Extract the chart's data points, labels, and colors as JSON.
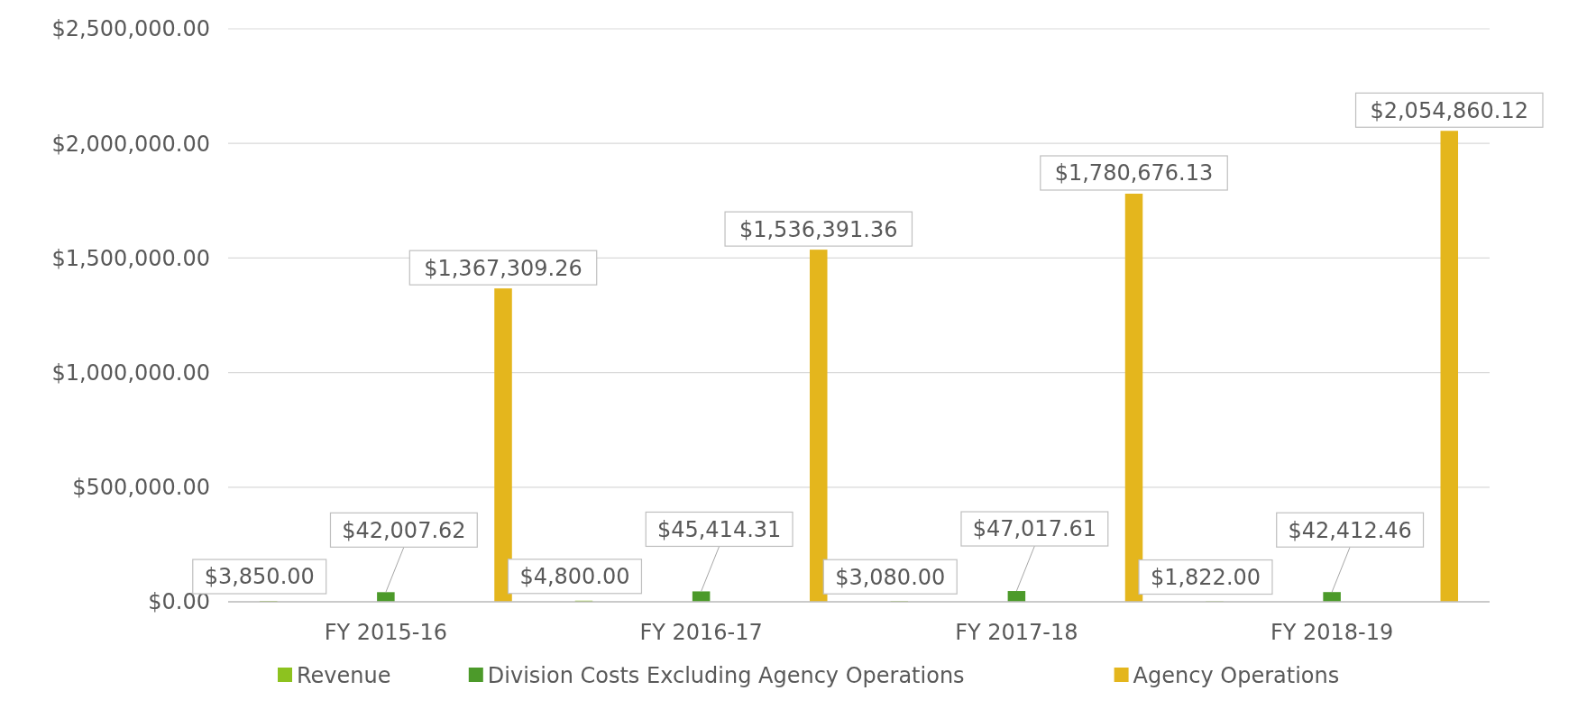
{
  "chart_data": {
    "type": "bar",
    "categories": [
      "FY 2015-16",
      "FY 2016-17",
      "FY 2017-18",
      "FY 2018-19"
    ],
    "series": [
      {
        "name": "Revenue",
        "color": "#8dc21f",
        "values": [
          3850,
          4800,
          3080,
          1822
        ],
        "value_labels": [
          "$3,850.00",
          "$4,800.00",
          "$3,080.00",
          "$1,822.00"
        ]
      },
      {
        "name": "Division Costs Excluding Agency Operations",
        "color": "#4c9a2a",
        "values": [
          42007.62,
          45414.31,
          47017.61,
          42412.46
        ],
        "value_labels": [
          "$42,007.62",
          "$45,414.31",
          "$47,017.61",
          "$42,412.46"
        ]
      },
      {
        "name": "Agency Operations",
        "color": "#e4b61d",
        "values": [
          1367309.26,
          1536391.36,
          1780676.13,
          2054860.12
        ],
        "value_labels": [
          "$1,367,309.26",
          "$1,536,391.36",
          "$1,780,676.13",
          "$2,054,860.12"
        ]
      }
    ],
    "ylim": [
      0,
      2500000
    ],
    "yticks": [
      {
        "value": 0,
        "label": "$0.00"
      },
      {
        "value": 500000,
        "label": "$500,000.00"
      },
      {
        "value": 1000000,
        "label": "$1,000,000.00"
      },
      {
        "value": 1500000,
        "label": "$1,500,000.00"
      },
      {
        "value": 2000000,
        "label": "$2,000,000.00"
      },
      {
        "value": 2500000,
        "label": "$2,500,000.00"
      }
    ],
    "grid": "y",
    "legend": "bottom"
  }
}
